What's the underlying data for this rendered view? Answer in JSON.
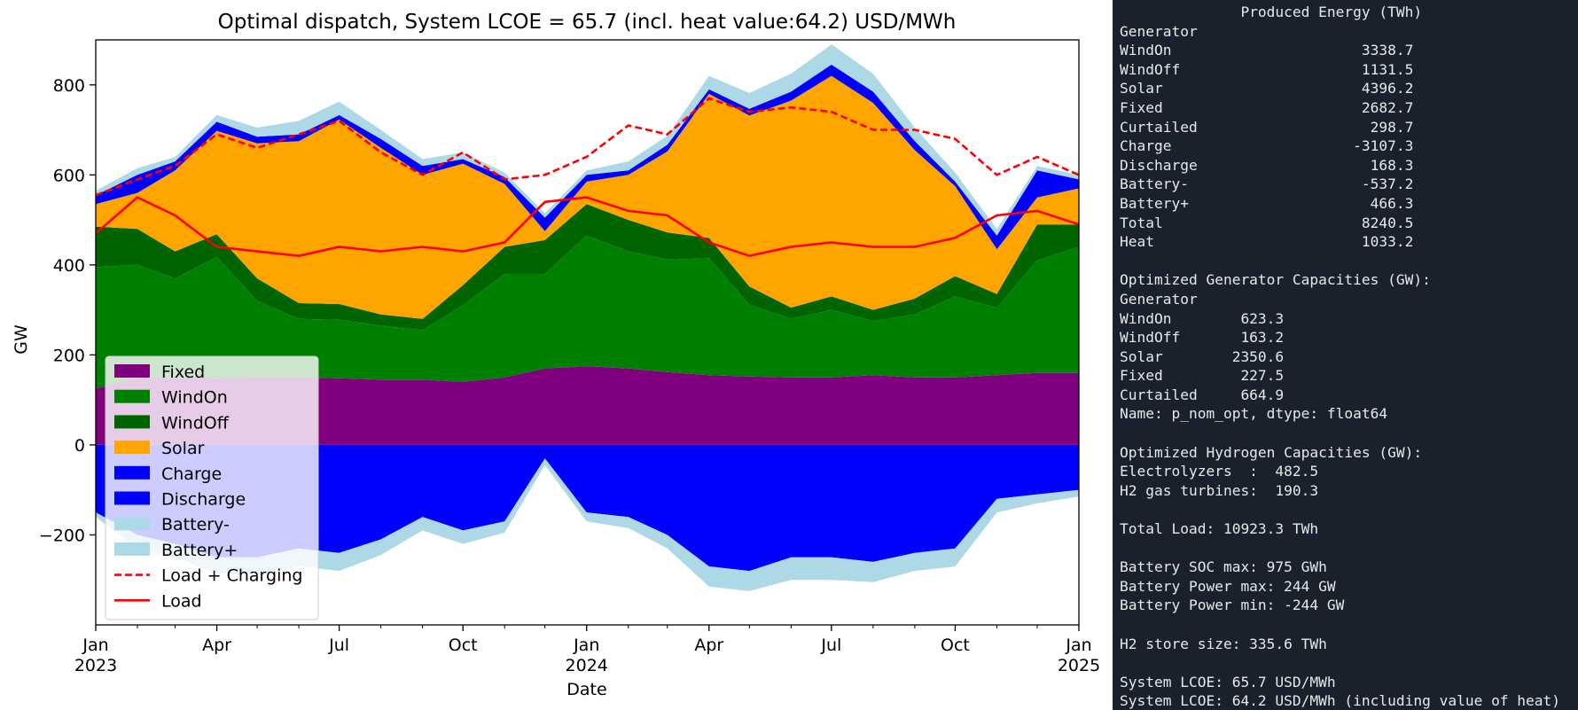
{
  "chart_data": {
    "type": "area",
    "title": "Optimal dispatch, System LCOE = 65.7 (incl. heat value:64.2) USD/MWh",
    "xlabel": "Date",
    "ylabel": "GW",
    "ylim": [
      -400,
      900
    ],
    "xlim": [
      "2023-01-01",
      "2025-01-01"
    ],
    "y_ticks": [
      -200,
      0,
      200,
      400,
      600,
      800
    ],
    "y_tick_labels": [
      "−200",
      "0",
      "200",
      "400",
      "600",
      "800"
    ],
    "x_ticks": [
      {
        "date": "2023-01-01",
        "label": "Jan",
        "year": "2023"
      },
      {
        "date": "2023-04-01",
        "label": "Apr",
        "year": ""
      },
      {
        "date": "2023-07-01",
        "label": "Jul",
        "year": ""
      },
      {
        "date": "2023-10-01",
        "label": "Oct",
        "year": ""
      },
      {
        "date": "2024-01-01",
        "label": "Jan",
        "year": "2024"
      },
      {
        "date": "2024-04-01",
        "label": "Apr",
        "year": ""
      },
      {
        "date": "2024-07-01",
        "label": "Jul",
        "year": ""
      },
      {
        "date": "2024-10-01",
        "label": "Oct",
        "year": ""
      },
      {
        "date": "2025-01-01",
        "label": "Jan",
        "year": "2025"
      }
    ],
    "legend_position": "lower-left",
    "grid": false,
    "x": [
      "2023-01-01",
      "2023-02-01",
      "2023-03-01",
      "2023-04-01",
      "2023-05-01",
      "2023-06-01",
      "2023-07-01",
      "2023-08-01",
      "2023-09-01",
      "2023-10-01",
      "2023-11-01",
      "2023-12-01",
      "2024-01-01",
      "2024-02-01",
      "2024-03-01",
      "2024-04-01",
      "2024-05-01",
      "2024-06-01",
      "2024-07-01",
      "2024-08-01",
      "2024-09-01",
      "2024-10-01",
      "2024-11-01",
      "2024-12-01",
      "2025-01-01"
    ],
    "series": [
      {
        "name": "Fixed",
        "color": "#800080",
        "stack": "positive",
        "values": [
          125,
          150,
          150,
          148,
          150,
          150,
          148,
          145,
          145,
          140,
          150,
          170,
          175,
          170,
          162,
          155,
          152,
          150,
          150,
          155,
          150,
          150,
          155,
          160,
          160
        ]
      },
      {
        "name": "WindOn",
        "color": "#008000",
        "stack": "positive",
        "values": [
          270,
          250,
          220,
          270,
          170,
          130,
          130,
          120,
          110,
          170,
          230,
          210,
          290,
          260,
          250,
          260,
          160,
          130,
          150,
          120,
          140,
          180,
          150,
          250,
          280
        ]
      },
      {
        "name": "WindOff",
        "color": "#006400",
        "stack": "positive",
        "values": [
          90,
          80,
          60,
          50,
          50,
          35,
          35,
          25,
          25,
          45,
          60,
          75,
          70,
          70,
          60,
          45,
          40,
          25,
          30,
          25,
          35,
          45,
          30,
          80,
          50
        ]
      },
      {
        "name": "Solar",
        "color": "#ffa500",
        "stack": "positive",
        "values": [
          50,
          80,
          180,
          230,
          300,
          360,
          410,
          370,
          320,
          270,
          140,
          20,
          50,
          100,
          180,
          320,
          380,
          460,
          490,
          460,
          330,
          200,
          100,
          60,
          80
        ]
      },
      {
        "name": "Charge",
        "color": "#0000ff",
        "stack": "positive",
        "values": [
          20,
          40,
          20,
          20,
          15,
          15,
          10,
          20,
          20,
          10,
          15,
          30,
          15,
          10,
          15,
          10,
          15,
          20,
          25,
          25,
          20,
          10,
          30,
          60,
          20
        ]
      },
      {
        "name": "Discharge",
        "color": "#0000ff",
        "stack": "negative",
        "values": [
          -150,
          -200,
          -220,
          -250,
          -250,
          -230,
          -240,
          -210,
          -160,
          -190,
          -170,
          -30,
          -150,
          -160,
          -200,
          -270,
          -280,
          -250,
          -250,
          -260,
          -240,
          -230,
          -120,
          -110,
          -100
        ]
      },
      {
        "name": "Battery-",
        "color": "#add8e6",
        "stack": "positive",
        "values": [
          10,
          15,
          10,
          15,
          20,
          30,
          30,
          20,
          15,
          15,
          10,
          10,
          10,
          20,
          20,
          30,
          35,
          40,
          45,
          40,
          30,
          20,
          15,
          10,
          10
        ]
      },
      {
        "name": "Battery+",
        "color": "#add8e6",
        "stack": "negative",
        "values": [
          -10,
          -30,
          -30,
          -35,
          -40,
          -40,
          -40,
          -35,
          -30,
          -30,
          -25,
          -15,
          -20,
          -25,
          -30,
          -45,
          -45,
          -50,
          -50,
          -45,
          -40,
          -40,
          -30,
          -20,
          -15
        ]
      },
      {
        "name": "Load + Charging",
        "color": "#ff0000",
        "style": "dashed",
        "values": [
          555,
          590,
          620,
          690,
          660,
          690,
          720,
          650,
          600,
          650,
          590,
          600,
          640,
          710,
          690,
          770,
          740,
          750,
          740,
          700,
          700,
          680,
          600,
          640,
          600
        ]
      },
      {
        "name": "Load",
        "color": "#ff0000",
        "style": "solid",
        "values": [
          470,
          550,
          510,
          440,
          430,
          420,
          440,
          430,
          440,
          430,
          450,
          540,
          550,
          520,
          510,
          450,
          420,
          440,
          450,
          440,
          440,
          460,
          510,
          520,
          490
        ]
      }
    ]
  },
  "console": {
    "lines": [
      "              Produced Energy (TWh)",
      "Generator",
      "WindOn                      3338.7",
      "WindOff                     1131.5",
      "Solar                       4396.2",
      "Fixed                       2682.7",
      "Curtailed                    298.7",
      "Charge                     -3107.3",
      "Discharge                    168.3",
      "Battery-                    -537.2",
      "Battery+                     466.3",
      "Total                       8240.5",
      "Heat                        1033.2",
      "",
      "Optimized Generator Capacities (GW):",
      "Generator",
      "WindOn        623.3",
      "WindOff       163.2",
      "Solar        2350.6",
      "Fixed         227.5",
      "Curtailed     664.9",
      "Name: p_nom_opt, dtype: float64",
      "",
      "Optimized Hydrogen Capacities (GW):",
      "Electrolyzers  :  482.5",
      "H2 gas turbines:  190.3",
      "",
      "Total Load: 10923.3 TWh",
      "",
      "Battery SOC max: 975 GWh",
      "Battery Power max: 244 GW",
      "Battery Power min: -244 GW",
      "",
      "H2 store size: 335.6 TWh",
      "",
      "System LCOE: 65.7 USD/MWh",
      "System LCOE: 64.2 USD/MWh (including value of heat)"
    ]
  }
}
